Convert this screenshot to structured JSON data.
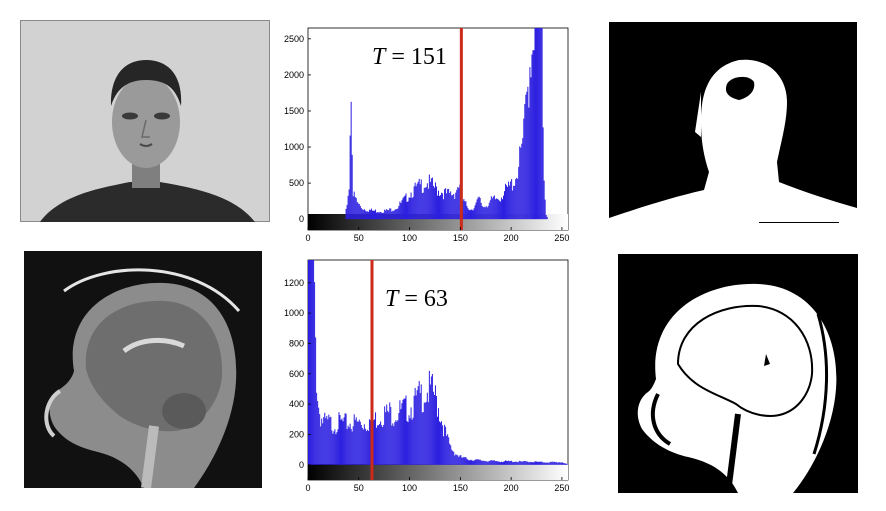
{
  "chart_data": [
    {
      "type": "bar",
      "name": "histogram-top",
      "threshold": 151,
      "threshold_label_T": "T",
      "threshold_label_rest": " = 151",
      "xlim": [
        0,
        256
      ],
      "ylim": [
        -150,
        2650
      ],
      "xticks": [
        0,
        50,
        100,
        150,
        200,
        250
      ],
      "yticks": [
        0,
        500,
        1000,
        1500,
        2000,
        2500
      ],
      "bar_color": "#2b1ee0",
      "threshold_color": "#cc2a1a",
      "x": [
        0,
        4,
        8,
        12,
        16,
        20,
        24,
        28,
        32,
        36,
        40,
        42,
        44,
        48,
        52,
        56,
        60,
        64,
        68,
        72,
        76,
        80,
        84,
        88,
        92,
        96,
        100,
        104,
        108,
        112,
        116,
        120,
        124,
        128,
        132,
        136,
        140,
        144,
        148,
        152,
        156,
        160,
        164,
        168,
        172,
        176,
        180,
        184,
        188,
        192,
        196,
        200,
        204,
        208,
        212,
        216,
        218,
        220,
        222,
        224,
        226,
        228,
        230,
        232,
        234,
        236,
        240,
        244,
        248,
        252,
        256
      ],
      "values": [
        0,
        0,
        0,
        0,
        0,
        0,
        0,
        0,
        0,
        0,
        400,
        1650,
        300,
        200,
        140,
        120,
        110,
        100,
        100,
        100,
        100,
        110,
        130,
        150,
        200,
        250,
        320,
        350,
        380,
        420,
        450,
        420,
        380,
        350,
        330,
        300,
        300,
        320,
        420,
        220,
        160,
        120,
        160,
        240,
        150,
        180,
        220,
        240,
        260,
        320,
        360,
        420,
        500,
        700,
        1000,
        1600,
        1900,
        2200,
        2500,
        2650,
        2650,
        2500,
        2000,
        500,
        60,
        0,
        0,
        0,
        0,
        0,
        0
      ]
    },
    {
      "type": "bar",
      "name": "histogram-bottom",
      "threshold": 63,
      "threshold_label_T": "T",
      "threshold_label_rest": " = 63",
      "xlim": [
        0,
        256
      ],
      "ylim": [
        -100,
        1350
      ],
      "xticks": [
        0,
        50,
        100,
        150,
        200,
        250
      ],
      "yticks": [
        0,
        200,
        400,
        600,
        800,
        1000,
        1200
      ],
      "bar_color": "#2b1ee0",
      "threshold_color": "#cc2a1a",
      "x": [
        0,
        2,
        4,
        6,
        8,
        10,
        12,
        14,
        16,
        18,
        20,
        24,
        28,
        32,
        36,
        40,
        44,
        48,
        52,
        56,
        60,
        64,
        68,
        72,
        76,
        80,
        84,
        88,
        92,
        96,
        100,
        104,
        108,
        112,
        116,
        120,
        124,
        128,
        132,
        136,
        140,
        144,
        148,
        152,
        156,
        160,
        170,
        180,
        190,
        200,
        210,
        220,
        230,
        240,
        250,
        256
      ],
      "values": [
        1350,
        1350,
        1350,
        900,
        500,
        330,
        280,
        250,
        240,
        240,
        240,
        230,
        240,
        240,
        235,
        240,
        240,
        240,
        240,
        240,
        250,
        250,
        270,
        290,
        290,
        300,
        290,
        300,
        310,
        320,
        330,
        350,
        380,
        400,
        420,
        430,
        400,
        330,
        240,
        160,
        100,
        70,
        50,
        40,
        35,
        30,
        25,
        22,
        20,
        20,
        18,
        18,
        15,
        15,
        15,
        0
      ]
    }
  ]
}
